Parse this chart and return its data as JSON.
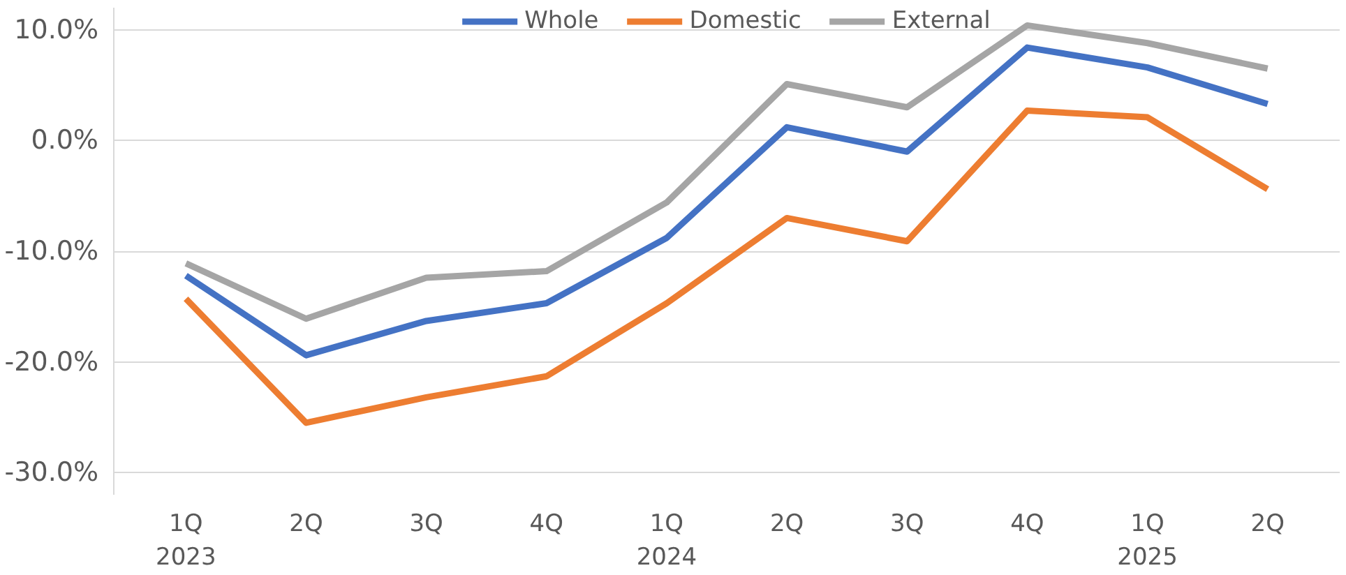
{
  "chart_data": {
    "type": "line",
    "categories": [
      "1Q\n2023",
      "2Q",
      "3Q",
      "4Q",
      "1Q\n2024",
      "2Q",
      "3Q",
      "4Q",
      "1Q\n2025",
      "2Q"
    ],
    "series": [
      {
        "name": "Whole",
        "color": "#4472c4",
        "values": [
          -12.2,
          -19.4,
          -16.3,
          -14.7,
          -8.8,
          1.2,
          -1.0,
          8.4,
          6.6,
          3.3
        ]
      },
      {
        "name": "Domestic",
        "color": "#ed7d31",
        "values": [
          -14.3,
          -25.5,
          -23.2,
          -21.3,
          -14.7,
          -7.0,
          -9.1,
          2.7,
          2.1,
          -4.4
        ]
      },
      {
        "name": "External",
        "color": "#a5a5a5",
        "values": [
          -11.1,
          -16.1,
          -12.4,
          -11.8,
          -5.6,
          5.1,
          3.0,
          10.4,
          8.8,
          6.5
        ]
      }
    ],
    "ylim": [
      -32,
      12
    ],
    "yticks": [
      {
        "value": -30,
        "label": "-30.0%"
      },
      {
        "value": -20,
        "label": "-20.0%"
      },
      {
        "value": -10,
        "label": "-10.0%"
      },
      {
        "value": 0,
        "label": "0.0%"
      },
      {
        "value": 10,
        "label": "10.0%"
      }
    ],
    "grid": "y",
    "legend": "top",
    "marker": "none",
    "line_style": "solid"
  }
}
